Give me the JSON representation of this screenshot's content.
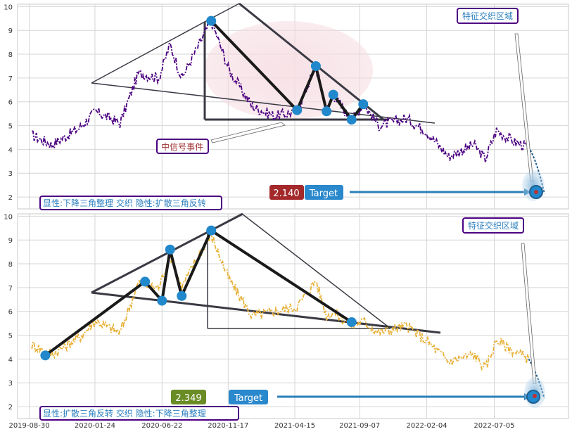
{
  "colors": {
    "top_series": "#4b0082",
    "bottom_series": "#e8b23a",
    "pattern_line": "#22222a",
    "marker": "#2288cc",
    "arrow": "#2a7fb8",
    "label_border": "#4b0082",
    "label_text_blue": "#2b7fbf",
    "label_text_red": "#a03030",
    "price_box_red": "#a3292b",
    "price_box_green": "#6a8c25",
    "target_box": "#2a88cc"
  },
  "x_axis": {
    "tick_labels": [
      "2019-08-30",
      "2020-01-24",
      "2020-06-22",
      "2020-11-17",
      "2021-04-15",
      "2021-09-07",
      "2022-02-04",
      "2022-07-05"
    ]
  },
  "panels": {
    "top": {
      "zone_label": "特征交织区域",
      "event_label": "中信号事件",
      "pattern_label": "显性:下降三角整理 交织 隐性:扩散三角反转",
      "price_label": "2.140",
      "target_label": "Target"
    },
    "bottom": {
      "zone_label": "特征交织区域",
      "pattern_label": "显性:扩散三角反转 交织 隐性:下降三角整理",
      "price_label": "2.349",
      "target_label": "Target"
    }
  },
  "chart_data": [
    {
      "type": "line",
      "panel": "top",
      "x_tick_labels": [
        "2019-08-30",
        "2020-01-24",
        "2020-06-22",
        "2020-11-17",
        "2021-04-15",
        "2021-09-07",
        "2022-02-04",
        "2022-07-05"
      ],
      "ylim": [
        1.5,
        10.1
      ],
      "yticks": [
        2,
        3,
        4,
        5,
        6,
        7,
        8,
        9,
        10
      ],
      "grid": true,
      "series_anchor_points": [
        {
          "date": "2019-09-05",
          "value": 4.6
        },
        {
          "date": "2019-10-20",
          "value": 4.2
        },
        {
          "date": "2019-12-20",
          "value": 4.9
        },
        {
          "date": "2020-01-25",
          "value": 5.6
        },
        {
          "date": "2020-03-20",
          "value": 5.1
        },
        {
          "date": "2020-04-30",
          "value": 7.2
        },
        {
          "date": "2020-06-15",
          "value": 7.0
        },
        {
          "date": "2020-07-10",
          "value": 8.4
        },
        {
          "date": "2020-08-05",
          "value": 7.0
        },
        {
          "date": "2020-09-10",
          "value": 8.3
        },
        {
          "date": "2020-10-10",
          "value": 9.4
        },
        {
          "date": "2020-11-20",
          "value": 7.3
        },
        {
          "date": "2021-01-10",
          "value": 5.8
        },
        {
          "date": "2021-03-01",
          "value": 5.4
        },
        {
          "date": "2021-04-20",
          "value": 5.6
        },
        {
          "date": "2021-06-01",
          "value": 7.5
        },
        {
          "date": "2021-06-25",
          "value": 5.6
        },
        {
          "date": "2021-07-10",
          "value": 6.3
        },
        {
          "date": "2021-08-20",
          "value": 5.2
        },
        {
          "date": "2021-09-15",
          "value": 5.9
        },
        {
          "date": "2021-10-20",
          "value": 5.0
        },
        {
          "date": "2021-12-20",
          "value": 5.3
        },
        {
          "date": "2022-02-01",
          "value": 4.8
        },
        {
          "date": "2022-03-25",
          "value": 3.7
        },
        {
          "date": "2022-05-20",
          "value": 4.2
        },
        {
          "date": "2022-06-15",
          "value": 3.6
        },
        {
          "date": "2022-07-10",
          "value": 4.8
        },
        {
          "date": "2022-08-20",
          "value": 4.3
        },
        {
          "date": "2022-09-20",
          "value": 4.1
        }
      ],
      "pivot_points": [
        {
          "date": "2020-10-10",
          "value": 9.4
        },
        {
          "date": "2021-04-20",
          "value": 5.65
        },
        {
          "date": "2021-06-01",
          "value": 7.5
        },
        {
          "date": "2021-06-25",
          "value": 5.6
        },
        {
          "date": "2021-07-10",
          "value": 6.3
        },
        {
          "date": "2021-08-20",
          "value": 5.25
        },
        {
          "date": "2021-09-15",
          "value": 5.9
        }
      ],
      "target": {
        "date": "2022-10-25",
        "value": 2.14
      },
      "price_label": "2.140"
    },
    {
      "type": "line",
      "panel": "bottom",
      "x_tick_labels": [
        "2019-08-30",
        "2020-01-24",
        "2020-06-22",
        "2020-11-17",
        "2021-04-15",
        "2021-09-07",
        "2022-02-04",
        "2022-07-05"
      ],
      "ylim": [
        1.5,
        10.1
      ],
      "yticks": [
        2,
        3,
        4,
        5,
        6,
        7,
        8,
        9,
        10
      ],
      "grid": true,
      "series_anchor_points": [
        {
          "date": "2019-09-05",
          "value": 4.6
        },
        {
          "date": "2019-10-20",
          "value": 4.2
        },
        {
          "date": "2019-12-20",
          "value": 4.9
        },
        {
          "date": "2020-01-25",
          "value": 5.6
        },
        {
          "date": "2020-03-20",
          "value": 5.1
        },
        {
          "date": "2020-04-30",
          "value": 7.2
        },
        {
          "date": "2020-06-15",
          "value": 7.0
        },
        {
          "date": "2020-07-10",
          "value": 8.4
        },
        {
          "date": "2020-08-05",
          "value": 7.0
        },
        {
          "date": "2020-09-10",
          "value": 8.3
        },
        {
          "date": "2020-10-10",
          "value": 9.2
        },
        {
          "date": "2020-11-20",
          "value": 7.3
        },
        {
          "date": "2021-01-10",
          "value": 5.8
        },
        {
          "date": "2021-03-01",
          "value": 6.0
        },
        {
          "date": "2021-04-20",
          "value": 6.2
        },
        {
          "date": "2021-06-01",
          "value": 7.3
        },
        {
          "date": "2021-06-25",
          "value": 5.8
        },
        {
          "date": "2021-07-10",
          "value": 6.0
        },
        {
          "date": "2021-08-20",
          "value": 5.4
        },
        {
          "date": "2021-09-15",
          "value": 5.6
        },
        {
          "date": "2021-10-20",
          "value": 5.1
        },
        {
          "date": "2021-12-20",
          "value": 5.4
        },
        {
          "date": "2022-02-01",
          "value": 4.8
        },
        {
          "date": "2022-03-25",
          "value": 3.9
        },
        {
          "date": "2022-05-20",
          "value": 4.2
        },
        {
          "date": "2022-06-15",
          "value": 3.6
        },
        {
          "date": "2022-07-10",
          "value": 4.8
        },
        {
          "date": "2022-08-20",
          "value": 4.3
        },
        {
          "date": "2022-09-20",
          "value": 4.0
        }
      ],
      "pivot_points": [
        {
          "date": "2019-10-05",
          "value": 4.15
        },
        {
          "date": "2020-05-15",
          "value": 7.25
        },
        {
          "date": "2020-06-22",
          "value": 6.45
        },
        {
          "date": "2020-07-10",
          "value": 8.6
        },
        {
          "date": "2020-08-05",
          "value": 6.65
        },
        {
          "date": "2020-10-10",
          "value": 9.4
        },
        {
          "date": "2021-08-20",
          "value": 5.55
        }
      ],
      "target": {
        "date": "2022-10-25",
        "value": 2.349
      },
      "price_label": "2.349"
    }
  ]
}
